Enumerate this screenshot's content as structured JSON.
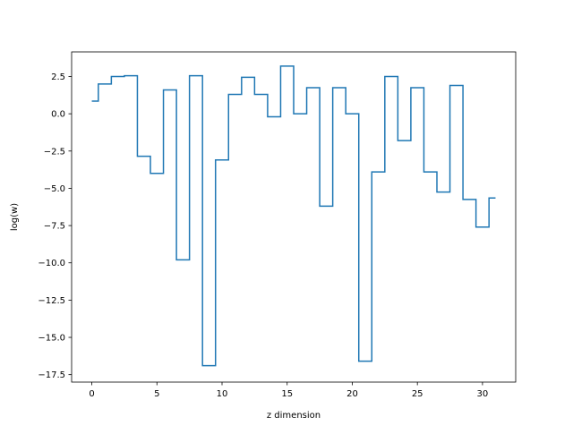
{
  "chart_data": {
    "type": "line",
    "drawstyle": "steps-mid",
    "xlabel": "z dimension",
    "ylabel": "log(w)",
    "xlim": [
      -1.55,
      32.55
    ],
    "ylim": [
      -18.0,
      4.15
    ],
    "xticks": [
      0,
      5,
      10,
      15,
      20,
      25,
      30
    ],
    "yticks": [
      2.5,
      0.0,
      -2.5,
      -5.0,
      -7.5,
      -10.0,
      -12.5,
      -15.0,
      -17.5
    ],
    "ytick_labels": [
      "2.5",
      "0.0",
      "−2.5",
      "−5.0",
      "−7.5",
      "−10.0",
      "−12.5",
      "−15.0",
      "−17.5"
    ],
    "grid": false,
    "series": [
      {
        "color": "#1f77b4",
        "x": [
          0,
          1,
          2,
          3,
          4,
          5,
          6,
          7,
          8,
          9,
          10,
          11,
          12,
          13,
          14,
          15,
          16,
          17,
          18,
          19,
          20,
          21,
          22,
          23,
          24,
          25,
          26,
          27,
          28,
          29,
          30,
          31
        ],
        "values": [
          0.85,
          2.0,
          2.5,
          2.55,
          -2.85,
          -4.0,
          1.6,
          -9.8,
          2.55,
          -16.9,
          -3.1,
          1.3,
          2.45,
          1.3,
          -0.2,
          3.2,
          0.0,
          1.75,
          -6.2,
          1.75,
          0.0,
          -16.6,
          -3.9,
          2.5,
          -1.8,
          1.75,
          -3.9,
          -5.25,
          1.9,
          -5.75,
          -7.6,
          -5.65
        ]
      }
    ]
  }
}
